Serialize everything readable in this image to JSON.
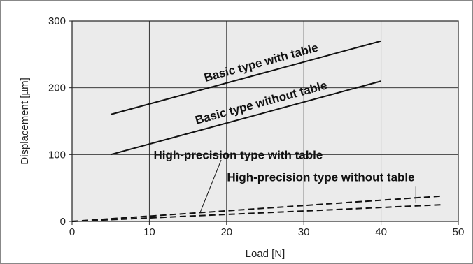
{
  "chart_data": {
    "type": "line",
    "title": "",
    "xlabel": "Load [N]",
    "ylabel": "Displacement [µm]",
    "xlim": [
      0,
      50
    ],
    "ylim": [
      0,
      300
    ],
    "xticks": [
      0,
      10,
      20,
      30,
      40,
      50
    ],
    "yticks": [
      0,
      100,
      200,
      300
    ],
    "grid": true,
    "legend": "none",
    "background": "#ebebeb",
    "series": [
      {
        "name": "Basic type with table",
        "style": "solid",
        "x": [
          5,
          40
        ],
        "y": [
          160,
          270
        ]
      },
      {
        "name": "Basic type without table",
        "style": "solid",
        "x": [
          5,
          40
        ],
        "y": [
          100,
          210
        ]
      },
      {
        "name": "High-precision type with table",
        "style": "dashed",
        "x": [
          0,
          48
        ],
        "y": [
          0,
          38
        ]
      },
      {
        "name": "High-precision type without table",
        "style": "dashed",
        "x": [
          0,
          48
        ],
        "y": [
          0,
          25
        ]
      }
    ]
  }
}
